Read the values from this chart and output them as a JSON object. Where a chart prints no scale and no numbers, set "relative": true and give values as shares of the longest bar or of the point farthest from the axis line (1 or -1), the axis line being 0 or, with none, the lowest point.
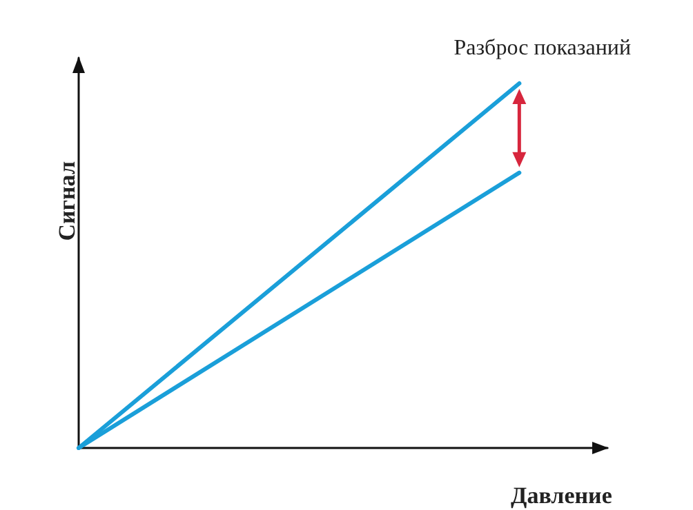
{
  "chart_data": {
    "type": "line",
    "relative": true,
    "xlabel": "Давление",
    "ylabel": "Сигнал",
    "annotations": [
      "Разброс показаний"
    ],
    "categories": [
      null,
      null,
      null,
      null,
      null,
      null,
      null
    ],
    "series": [
      {
        "color": "#1a9fd9",
        "values": [
          0,
          null,
          null,
          null,
          null,
          1,
          null
        ]
      },
      {
        "color": "#1a9fd9",
        "values": [
          0,
          null,
          null,
          null,
          null,
          0.755,
          null
        ]
      }
    ],
    "grid": false,
    "marker": "none",
    "line_style": "solid"
  }
}
